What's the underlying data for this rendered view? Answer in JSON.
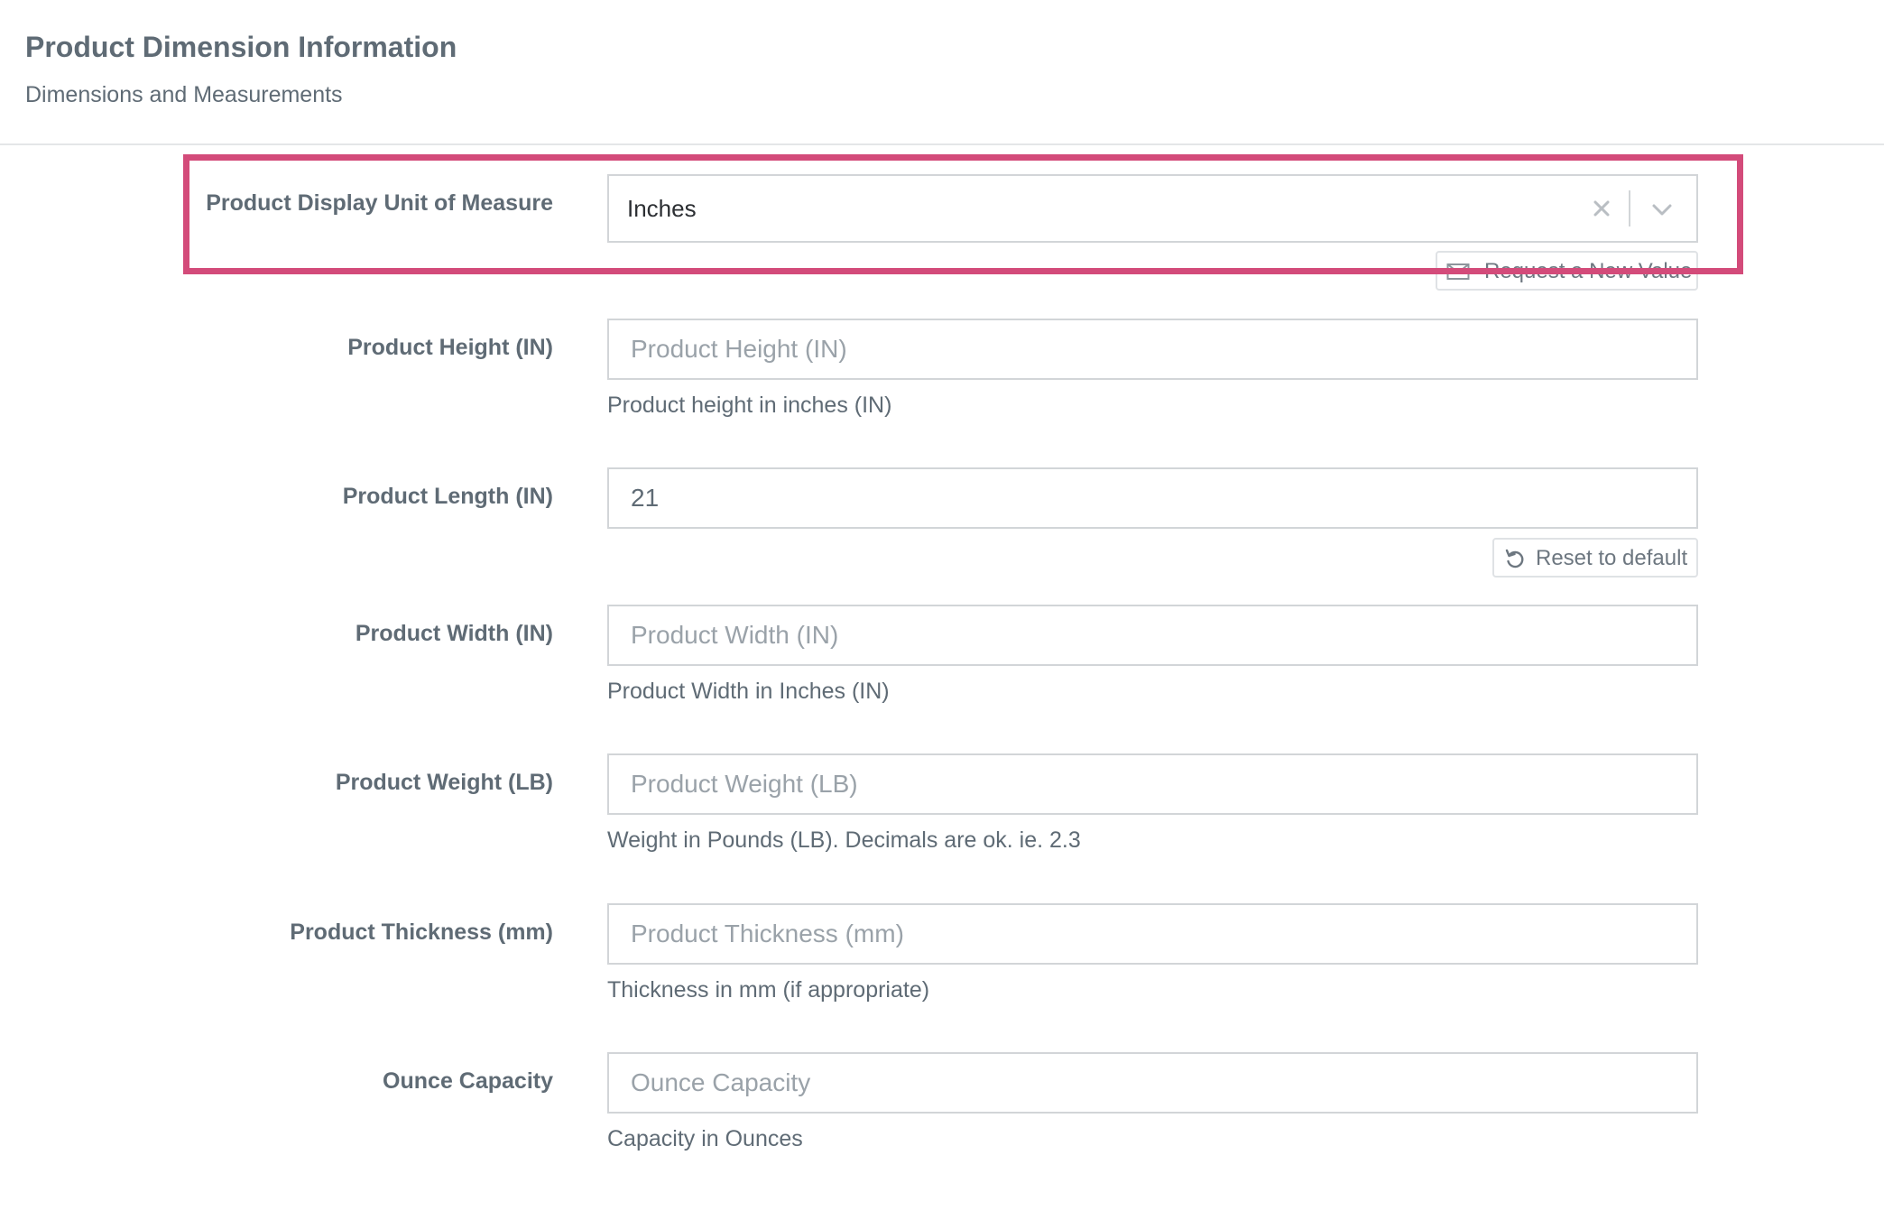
{
  "header": {
    "title": "Product Dimension Information",
    "subtitle": "Dimensions and Measurements"
  },
  "highlight_color": "#d34b7a",
  "unit_of_measure": {
    "label": "Product Display Unit of Measure",
    "value": "Inches",
    "clear_icon": "close-icon",
    "dropdown_icon": "chevron-down-icon",
    "request_new_value_label": "Request a New Value",
    "request_icon": "envelope-icon"
  },
  "fields": {
    "height": {
      "label": "Product Height (IN)",
      "value": "",
      "placeholder": "Product Height (IN)",
      "help": "Product height in inches (IN)"
    },
    "length": {
      "label": "Product Length (IN)",
      "value": "21",
      "placeholder": "",
      "reset_label": "Reset to default",
      "reset_icon": "undo-icon"
    },
    "width": {
      "label": "Product Width (IN)",
      "value": "",
      "placeholder": "Product Width (IN)",
      "help": "Product Width in Inches (IN)"
    },
    "weight": {
      "label": "Product Weight (LB)",
      "value": "",
      "placeholder": "Product Weight (LB)",
      "help": "Weight in Pounds (LB). Decimals are ok. ie. 2.3"
    },
    "thickness": {
      "label": "Product Thickness (mm)",
      "value": "",
      "placeholder": "Product Thickness (mm)",
      "help": "Thickness in mm (if appropriate)"
    },
    "ounce_capacity": {
      "label": "Ounce Capacity",
      "value": "",
      "placeholder": "Ounce Capacity",
      "help": "Capacity in Ounces"
    }
  }
}
